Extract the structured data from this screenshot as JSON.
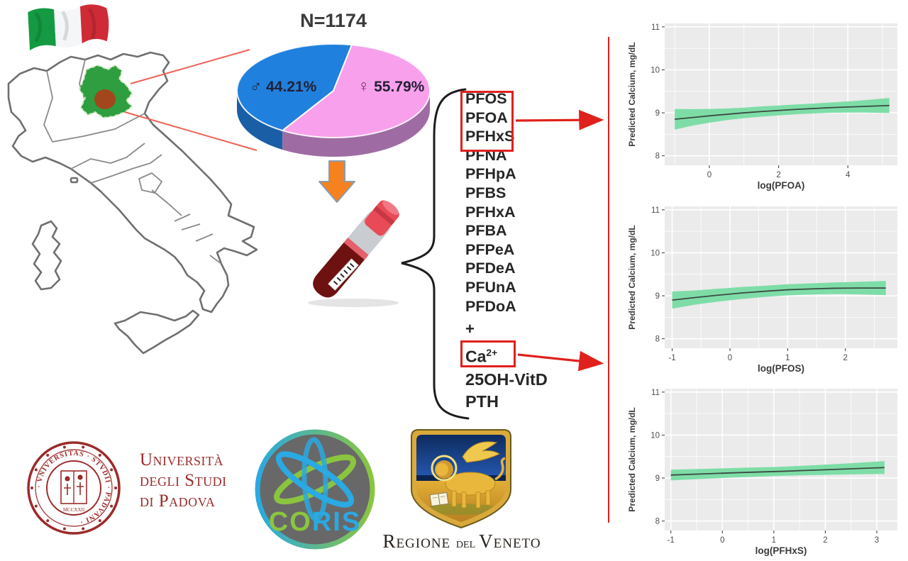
{
  "pie": {
    "title": "N=1174",
    "male_symbol": "♂",
    "male_value": "44.21%",
    "female_symbol": "♀",
    "female_value": "55.79%"
  },
  "analytes": {
    "boxed_group": [
      "PFOS",
      "PFOA",
      "PFHxS"
    ],
    "list": [
      "PFNA",
      "PFHpA",
      "PFBS",
      "PFHxA",
      "PFBA",
      "PFPeA",
      "PFDeA",
      "PFUnA",
      "PFDoA"
    ],
    "plus": "+",
    "ca_base": "Ca",
    "ca_sup": "2+",
    "after_ca": [
      "25OH-VitD",
      "PTH"
    ]
  },
  "colors": {
    "accent_red": "#e0201c",
    "zoom_line_red": "#ec6357",
    "veneto_green": "#2e9e40",
    "contamination_brown": "#a2471d",
    "arrow_orange": "#f5821f",
    "pie_male_blue": "#2080dd",
    "pie_female_pink": "#f9a0ec"
  },
  "chart_data": [
    {
      "type": "pie",
      "title": "N=1174",
      "labels": [
        "♂ male",
        "♀ female"
      ],
      "values": [
        44.21,
        55.79
      ],
      "colors": [
        "#2080dd",
        "#f9a0ec"
      ],
      "side_colors": [
        "#1a5fa6",
        "#9e6ca3"
      ]
    },
    {
      "type": "area",
      "title": "",
      "xlabel": "log(PFOA)",
      "ylabel": "Predicted Calcium, mg/dL",
      "xlim": [
        -1.29,
        5.43
      ],
      "ylim": [
        7.78,
        11.08
      ],
      "xticks": [
        0,
        2,
        4
      ],
      "xminor": [
        -1,
        1,
        3,
        5
      ],
      "yticks": [
        8,
        9,
        10,
        11
      ],
      "yminor": [
        8.5,
        9.5,
        10.5
      ],
      "x": [
        -1,
        -0.5,
        0,
        0.5,
        1,
        1.5,
        2,
        2.5,
        3,
        3.5,
        4,
        4.5,
        5.2
      ],
      "y": [
        8.85,
        8.89,
        8.93,
        8.965,
        9.0,
        9.03,
        9.055,
        9.08,
        9.1,
        9.12,
        9.135,
        9.15,
        9.17
      ],
      "lo": [
        8.61,
        8.7,
        8.77,
        8.83,
        8.875,
        8.91,
        8.94,
        8.965,
        8.985,
        9.0,
        9.005,
        9.005,
        8.995
      ],
      "hi": [
        9.09,
        9.085,
        9.09,
        9.1,
        9.12,
        9.15,
        9.17,
        9.195,
        9.215,
        9.24,
        9.265,
        9.295,
        9.345
      ],
      "band_color": "#7edda7",
      "line_color": "#3c4a42",
      "bg": "#ebebeb",
      "grid": "on",
      "legend": "none"
    },
    {
      "type": "area",
      "title": "",
      "xlabel": "log(PFOS)",
      "ylabel": "Predicted Calcium, mg/dL",
      "xlim": [
        -1.13,
        2.9
      ],
      "ylim": [
        7.78,
        11.08
      ],
      "xticks": [
        -1,
        0,
        1,
        2
      ],
      "xminor": [
        -0.5,
        0.5,
        1.5,
        2.5
      ],
      "yticks": [
        8,
        9,
        10,
        11
      ],
      "yminor": [
        8.5,
        9.5,
        10.5
      ],
      "x": [
        -1,
        -0.6,
        -0.2,
        0.2,
        0.6,
        1.0,
        1.4,
        1.8,
        2.2,
        2.7
      ],
      "y": [
        8.9,
        8.96,
        9.015,
        9.065,
        9.105,
        9.14,
        9.16,
        9.175,
        9.18,
        9.18
      ],
      "lo": [
        8.7,
        8.795,
        8.865,
        8.925,
        8.975,
        9.01,
        9.03,
        9.04,
        9.035,
        9.015
      ],
      "hi": [
        9.1,
        9.125,
        9.165,
        9.205,
        9.235,
        9.27,
        9.29,
        9.31,
        9.325,
        9.345
      ],
      "band_color": "#7edda7",
      "line_color": "#3c4a42",
      "bg": "#ebebeb",
      "grid": "on",
      "legend": "none"
    },
    {
      "type": "area",
      "title": "",
      "xlabel": "log(PFHxS)",
      "ylabel": "Predicted Calcium, mg/dL",
      "xlim": [
        -1.12,
        3.4
      ],
      "ylim": [
        7.78,
        11.08
      ],
      "xticks": [
        -1,
        0,
        1,
        2,
        3
      ],
      "xminor": [
        -0.5,
        0.5,
        1.5,
        2.5
      ],
      "yticks": [
        8,
        9,
        10,
        11
      ],
      "yminor": [
        8.5,
        9.5,
        10.5
      ],
      "x": [
        -1,
        -0.3,
        0.4,
        1.1,
        1.8,
        2.5,
        3.15
      ],
      "y": [
        9.07,
        9.1,
        9.13,
        9.155,
        9.185,
        9.215,
        9.245
      ],
      "lo": [
        8.945,
        8.985,
        9.02,
        9.05,
        9.07,
        9.085,
        9.095
      ],
      "hi": [
        9.195,
        9.215,
        9.24,
        9.26,
        9.3,
        9.345,
        9.395
      ],
      "band_color": "#7edda7",
      "line_color": "#3c4a42",
      "bg": "#ebebeb",
      "grid": "on",
      "legend": "none"
    }
  ],
  "logos": {
    "unipd": {
      "ring_text": "· VNIVERSITAS · STVDII · PADVANI ·",
      "year": "MCCXXII",
      "lines": [
        "Università",
        "degli Studi",
        "di Padova"
      ]
    },
    "coris": {
      "letters": [
        {
          "ch": "C",
          "color": "#8bc53f"
        },
        {
          "ch": "O",
          "color": "#8bc53f"
        },
        {
          "ch": "R",
          "color": "#2aa9e2"
        },
        {
          "ch": "I",
          "color": "#2aa9e2"
        },
        {
          "ch": "S",
          "color": "#2aa9e2"
        }
      ]
    },
    "veneto": {
      "caption_main": "Regione ",
      "caption_mid": "del ",
      "caption_end": "Veneto"
    }
  }
}
